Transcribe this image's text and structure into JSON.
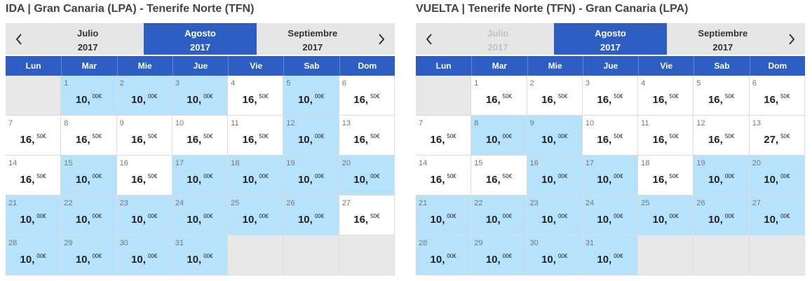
{
  "calendars": [
    {
      "title": "IDA | Gran Canaria (LPA) - Tenerife Norte (TFN)",
      "months": [
        {
          "name": "Julio",
          "year": "2017",
          "state": "normal"
        },
        {
          "name": "Agosto",
          "year": "2017",
          "state": "active"
        },
        {
          "name": "Septiembre",
          "year": "2017",
          "state": "normal"
        }
      ],
      "weekdays": [
        "Lun",
        "Mar",
        "Mie",
        "Jue",
        "Vie",
        "Sab",
        "Dom"
      ],
      "weeks": [
        [
          null,
          {
            "day": "1",
            "price": "10,",
            "cents": "00€",
            "highlight": true
          },
          {
            "day": "2",
            "price": "10,",
            "cents": "00€",
            "highlight": true
          },
          {
            "day": "3",
            "price": "10,",
            "cents": "00€",
            "highlight": true
          },
          {
            "day": "4",
            "price": "16,",
            "cents": "50€",
            "highlight": false
          },
          {
            "day": "5",
            "price": "10,",
            "cents": "00€",
            "highlight": true
          },
          {
            "day": "6",
            "price": "16,",
            "cents": "50€",
            "highlight": false
          }
        ],
        [
          {
            "day": "7",
            "price": "16,",
            "cents": "50€",
            "highlight": false
          },
          {
            "day": "8",
            "price": "16,",
            "cents": "50€",
            "highlight": false
          },
          {
            "day": "9",
            "price": "16,",
            "cents": "50€",
            "highlight": false
          },
          {
            "day": "10",
            "price": "16,",
            "cents": "50€",
            "highlight": false
          },
          {
            "day": "11",
            "price": "16,",
            "cents": "50€",
            "highlight": false
          },
          {
            "day": "12",
            "price": "10,",
            "cents": "00€",
            "highlight": true
          },
          {
            "day": "13",
            "price": "16,",
            "cents": "50€",
            "highlight": false
          }
        ],
        [
          {
            "day": "14",
            "price": "16,",
            "cents": "50€",
            "highlight": false
          },
          {
            "day": "15",
            "price": "10,",
            "cents": "00€",
            "highlight": true
          },
          {
            "day": "16",
            "price": "16,",
            "cents": "50€",
            "highlight": false
          },
          {
            "day": "17",
            "price": "10,",
            "cents": "00€",
            "highlight": true
          },
          {
            "day": "18",
            "price": "10,",
            "cents": "00€",
            "highlight": true
          },
          {
            "day": "19",
            "price": "10,",
            "cents": "00€",
            "highlight": true
          },
          {
            "day": "20",
            "price": "10,",
            "cents": "00€",
            "highlight": true
          }
        ],
        [
          {
            "day": "21",
            "price": "10,",
            "cents": "00€",
            "highlight": true
          },
          {
            "day": "22",
            "price": "10,",
            "cents": "00€",
            "highlight": true
          },
          {
            "day": "23",
            "price": "10,",
            "cents": "00€",
            "highlight": true
          },
          {
            "day": "24",
            "price": "10,",
            "cents": "00€",
            "highlight": true
          },
          {
            "day": "25",
            "price": "10,",
            "cents": "00€",
            "highlight": true
          },
          {
            "day": "26",
            "price": "10,",
            "cents": "00€",
            "highlight": true
          },
          {
            "day": "27",
            "price": "16,",
            "cents": "50€",
            "highlight": false
          }
        ],
        [
          {
            "day": "28",
            "price": "10,",
            "cents": "00€",
            "highlight": true
          },
          {
            "day": "29",
            "price": "10,",
            "cents": "00€",
            "highlight": true
          },
          {
            "day": "30",
            "price": "10,",
            "cents": "00€",
            "highlight": true
          },
          {
            "day": "31",
            "price": "10,",
            "cents": "00€",
            "highlight": true
          },
          null,
          null,
          null
        ]
      ]
    },
    {
      "title": "VUELTA | Tenerife Norte (TFN) - Gran Canaria (LPA)",
      "months": [
        {
          "name": "Julio",
          "year": "2017",
          "state": "disabled"
        },
        {
          "name": "Agosto",
          "year": "2017",
          "state": "active"
        },
        {
          "name": "Septiembre",
          "year": "2017",
          "state": "normal"
        }
      ],
      "weekdays": [
        "Lun",
        "Mar",
        "Mie",
        "Jue",
        "Vie",
        "Sab",
        "Dom"
      ],
      "weeks": [
        [
          null,
          {
            "day": "1",
            "price": "16,",
            "cents": "50€",
            "highlight": false
          },
          {
            "day": "2",
            "price": "16,",
            "cents": "50€",
            "highlight": false
          },
          {
            "day": "3",
            "price": "16,",
            "cents": "50€",
            "highlight": false
          },
          {
            "day": "4",
            "price": "16,",
            "cents": "50€",
            "highlight": false
          },
          {
            "day": "5",
            "price": "16,",
            "cents": "50€",
            "highlight": false
          },
          {
            "day": "6",
            "price": "16,",
            "cents": "50€",
            "highlight": false
          }
        ],
        [
          {
            "day": "7",
            "price": "16,",
            "cents": "50€",
            "highlight": false
          },
          {
            "day": "8",
            "price": "10,",
            "cents": "00€",
            "highlight": true
          },
          {
            "day": "9",
            "price": "10,",
            "cents": "00€",
            "highlight": true
          },
          {
            "day": "10",
            "price": "16,",
            "cents": "50€",
            "highlight": false
          },
          {
            "day": "11",
            "price": "16,",
            "cents": "50€",
            "highlight": false
          },
          {
            "day": "12",
            "price": "16,",
            "cents": "50€",
            "highlight": false
          },
          {
            "day": "13",
            "price": "27,",
            "cents": "50€",
            "highlight": false
          }
        ],
        [
          {
            "day": "14",
            "price": "16,",
            "cents": "50€",
            "highlight": false
          },
          {
            "day": "15",
            "price": "16,",
            "cents": "50€",
            "highlight": false
          },
          {
            "day": "16",
            "price": "10,",
            "cents": "00€",
            "highlight": true
          },
          {
            "day": "17",
            "price": "10,",
            "cents": "00€",
            "highlight": true
          },
          {
            "day": "18",
            "price": "16,",
            "cents": "50€",
            "highlight": false
          },
          {
            "day": "19",
            "price": "10,",
            "cents": "00€",
            "highlight": true
          },
          {
            "day": "20",
            "price": "10,",
            "cents": "00€",
            "highlight": true
          }
        ],
        [
          {
            "day": "21",
            "price": "10,",
            "cents": "00€",
            "highlight": true
          },
          {
            "day": "22",
            "price": "10,",
            "cents": "00€",
            "highlight": true
          },
          {
            "day": "23",
            "price": "10,",
            "cents": "00€",
            "highlight": true
          },
          {
            "day": "24",
            "price": "10,",
            "cents": "00€",
            "highlight": true
          },
          {
            "day": "25",
            "price": "10,",
            "cents": "00€",
            "highlight": true
          },
          {
            "day": "26",
            "price": "10,",
            "cents": "00€",
            "highlight": true
          },
          {
            "day": "27",
            "price": "10,",
            "cents": "00€",
            "highlight": true
          }
        ],
        [
          {
            "day": "28",
            "price": "10,",
            "cents": "00€",
            "highlight": true
          },
          {
            "day": "29",
            "price": "10,",
            "cents": "00€",
            "highlight": true
          },
          {
            "day": "30",
            "price": "10,",
            "cents": "00€",
            "highlight": true
          },
          {
            "day": "31",
            "price": "10,",
            "cents": "00€",
            "highlight": true
          },
          null,
          null,
          null
        ]
      ]
    }
  ]
}
